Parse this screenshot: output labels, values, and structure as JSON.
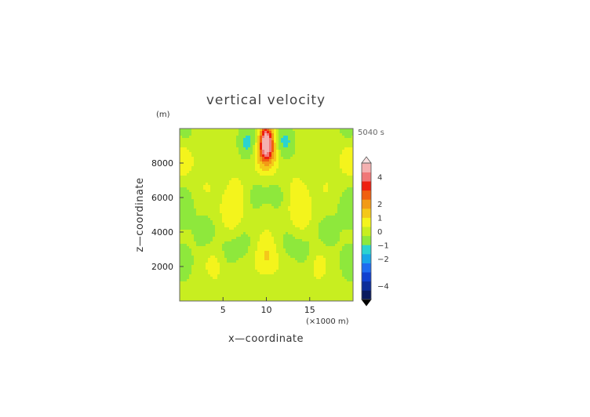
{
  "chart_data": {
    "type": "heatmap",
    "title": "vertical velocity",
    "time_label": "5040 s",
    "xlabel": "x—coordinate",
    "x_unit": "(×1000 m)",
    "ylabel": "z—coordinate",
    "y_unit": "(m)",
    "xlim": [
      0,
      20
    ],
    "ylim": [
      0,
      10000
    ],
    "x_ticks": [
      5,
      10,
      15
    ],
    "y_ticks": [
      2000,
      4000,
      6000,
      8000
    ],
    "colorbar": {
      "tick_labels": [
        "4",
        "2",
        "1",
        "0",
        "−1",
        "−2",
        "−4"
      ],
      "tick_values": [
        4,
        2,
        1,
        0,
        -1,
        -2,
        -4
      ],
      "range": [
        -5,
        5
      ],
      "colors": [
        "#0a1a5e",
        "#0d2d9a",
        "#1040d0",
        "#1e6cf0",
        "#18a6e8",
        "#2bd3d0",
        "#8ee83c",
        "#c8ee20",
        "#f4f41c",
        "#f4c81a",
        "#f29a16",
        "#f06010",
        "#ee2010",
        "#f07878",
        "#f4b0b0"
      ]
    },
    "features": [
      {
        "x": 10,
        "z": 9300,
        "w": 4,
        "kind": "updraft core"
      },
      {
        "x": 10,
        "z": 8700,
        "w": 2.5
      },
      {
        "x": 8,
        "z": 9200,
        "w": -1.5
      },
      {
        "x": 12,
        "z": 9200,
        "w": -1.5
      },
      {
        "x": 0.3,
        "z": 8300,
        "w": 1.2
      },
      {
        "x": 19.7,
        "z": 8300,
        "w": 1.2
      },
      {
        "x": 0.5,
        "z": 9600,
        "w": -0.6
      },
      {
        "x": 19.5,
        "z": 9600,
        "w": -0.6
      },
      {
        "x": 9,
        "z": 6000,
        "w": -1.0
      },
      {
        "x": 11,
        "z": 6000,
        "w": -1.0
      },
      {
        "x": 10,
        "z": 5600,
        "w": 0.5
      },
      {
        "x": 6.5,
        "z": 6300,
        "w": 0.4
      },
      {
        "x": 13.5,
        "z": 6300,
        "w": 0.4
      },
      {
        "x": 6,
        "z": 5000,
        "w": 0.8
      },
      {
        "x": 14,
        "z": 5000,
        "w": 0.8
      },
      {
        "x": 0.3,
        "z": 5500,
        "w": -0.9
      },
      {
        "x": 19.7,
        "z": 5500,
        "w": -0.9
      },
      {
        "x": 3,
        "z": 6500,
        "w": 0.4
      },
      {
        "x": 17,
        "z": 6500,
        "w": 0.4
      },
      {
        "x": 3,
        "z": 4000,
        "w": -0.7
      },
      {
        "x": 17,
        "z": 4000,
        "w": -0.7
      },
      {
        "x": 7.5,
        "z": 3400,
        "w": -0.7
      },
      {
        "x": 12.5,
        "z": 3400,
        "w": -0.7
      },
      {
        "x": 10,
        "z": 2600,
        "w": 0.9
      },
      {
        "x": 4,
        "z": 2200,
        "w": 0.7
      },
      {
        "x": 16,
        "z": 2200,
        "w": 0.7
      },
      {
        "x": 5.5,
        "z": 2800,
        "w": -0.7
      },
      {
        "x": 14.5,
        "z": 2800,
        "w": -0.7
      },
      {
        "x": 0.3,
        "z": 2200,
        "w": -0.6
      },
      {
        "x": 19.7,
        "z": 2200,
        "w": -0.6
      },
      {
        "x": 10,
        "z": 500,
        "w": -0.5
      }
    ]
  }
}
